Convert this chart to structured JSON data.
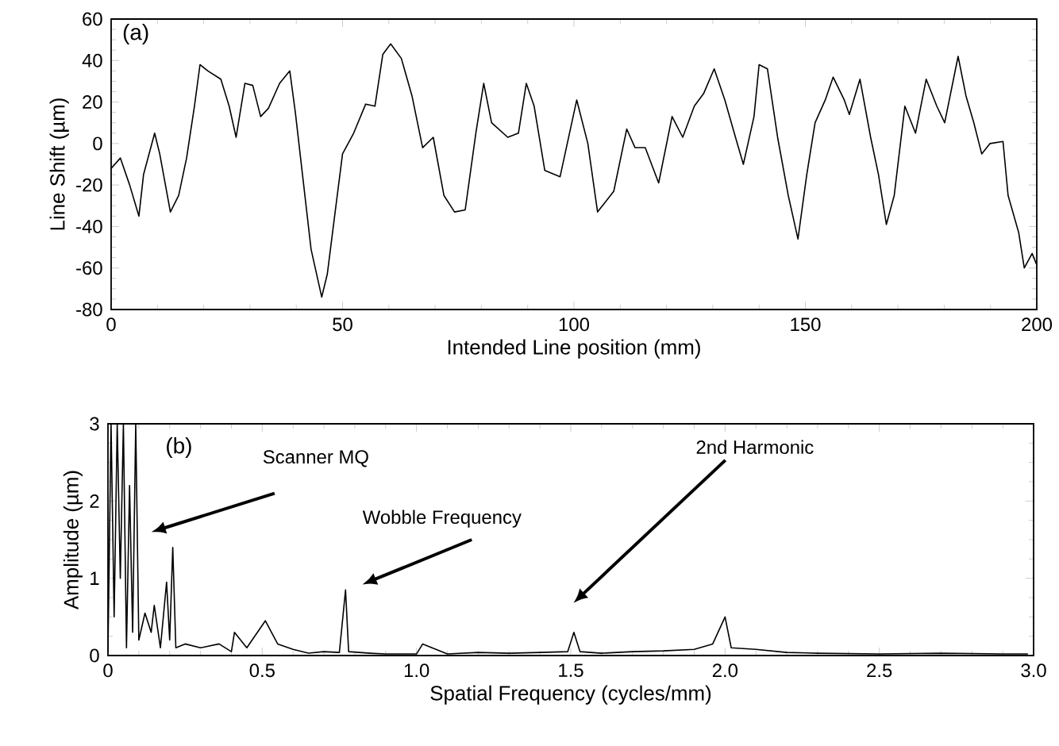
{
  "chart_data": [
    {
      "type": "line",
      "xlabel": "Intended Line position (mm)",
      "ylabel": "Line Shift (µm)",
      "annotations": [
        "(a)"
      ],
      "xlim": [
        0,
        200
      ],
      "ylim": [
        -80,
        60
      ],
      "xticks": [
        0,
        50,
        100,
        150,
        200
      ],
      "yticks": [
        -80,
        -60,
        -40,
        -20,
        0,
        20,
        40,
        60
      ],
      "grid": false,
      "x": [
        0,
        2,
        4,
        6,
        7,
        9.4,
        10.5,
        12.8,
        14.6,
        16.3,
        18,
        19.2,
        20.9,
        23.7,
        25.5,
        27,
        28.9,
        30.6,
        32.3,
        34,
        36.4,
        38.6,
        39.8,
        41.5,
        43.2,
        45.5,
        46.7,
        48.4,
        50,
        52.4,
        55,
        57,
        58.7,
        60.4,
        62.7,
        65,
        67.3,
        69.6,
        71.9,
        74.2,
        76.5,
        78.8,
        80.5,
        82.2,
        85.7,
        88,
        89.7,
        91.4,
        93.7,
        97,
        100.6,
        103,
        105.1,
        108.6,
        111.4,
        113.2,
        115.4,
        118.3,
        121.2,
        123.5,
        126,
        128,
        130.3,
        132.6,
        134.9,
        136.6,
        138.9,
        140,
        141.8,
        144,
        146.3,
        148.4,
        150.3,
        152.1,
        154.3,
        156,
        158.4,
        159.5,
        161.8,
        164.1,
        165.8,
        167.5,
        169.2,
        171.5,
        173.8,
        176.1,
        178.4,
        180.1,
        183,
        184.7,
        186.4,
        188.1,
        189.9,
        192.7,
        193.8,
        196.1,
        197.3,
        199,
        199.9
      ],
      "series": [
        {
          "color": "#000000",
          "values": [
            -12,
            -7,
            -20,
            -35,
            -15,
            5,
            -5,
            -33,
            -25,
            -7,
            18,
            38,
            35,
            31,
            18,
            3,
            29,
            28,
            13,
            17,
            29,
            35,
            15,
            -18,
            -51,
            -74,
            -63,
            -33,
            -5,
            5,
            19,
            18,
            43,
            48,
            41,
            23,
            -2,
            3,
            -25,
            -33,
            -32,
            5,
            29,
            10,
            3,
            5,
            29,
            18,
            -13,
            -16,
            21,
            0,
            -33,
            -23,
            7,
            -2,
            -2,
            -19,
            13,
            3,
            18,
            24,
            36,
            21,
            3,
            -10,
            13,
            38,
            36,
            3,
            -25,
            -46,
            -15,
            10,
            21,
            32,
            21,
            14,
            31,
            3,
            -15,
            -39,
            -25,
            18,
            5,
            31,
            18,
            10,
            42,
            23,
            10,
            -5,
            0,
            1,
            -25,
            -43,
            -60,
            -53,
            -58
          ]
        }
      ]
    },
    {
      "type": "line",
      "xlabel": "Spatial Frequency (cycles/mm)",
      "ylabel": "Amplitude (µm)",
      "annotations": [
        "(b)",
        "Scanner MQ",
        "Wobble Frequency",
        "2nd Harmonic"
      ],
      "xlim": [
        0,
        3
      ],
      "ylim": [
        0,
        3
      ],
      "xticks": [
        0,
        0.5,
        {
          "value": 1,
          "label": "1.0"
        },
        1.5,
        {
          "value": 2,
          "label": "2.0"
        },
        2.5,
        {
          "value": 3,
          "label": "3.0"
        }
      ],
      "yticks": [
        0,
        1,
        2,
        3
      ],
      "grid": false,
      "x": [
        0,
        0.01,
        0.02,
        0.03,
        0.04,
        0.05,
        0.06,
        0.07,
        0.08,
        0.09,
        0.1,
        0.12,
        0.14,
        0.15,
        0.17,
        0.19,
        0.2,
        0.21,
        0.22,
        0.25,
        0.3,
        0.36,
        0.4,
        0.41,
        0.45,
        0.51,
        0.55,
        0.6,
        0.65,
        0.7,
        0.75,
        0.77,
        0.78,
        0.85,
        0.9,
        1.0,
        1.02,
        1.1,
        1.2,
        1.3,
        1.4,
        1.49,
        1.51,
        1.53,
        1.6,
        1.7,
        1.8,
        1.9,
        1.96,
        2.0,
        2.02,
        2.1,
        2.2,
        2.3,
        2.5,
        2.7,
        2.9,
        2.98
      ],
      "series": [
        {
          "color": "#000000",
          "values": [
            0.05,
            3,
            0.5,
            3,
            1.0,
            3,
            0.1,
            2.2,
            0.3,
            3,
            0.2,
            0.55,
            0.3,
            0.65,
            0.1,
            0.95,
            0.2,
            1.4,
            0.1,
            0.15,
            0.1,
            0.15,
            0.05,
            0.3,
            0.1,
            0.45,
            0.15,
            0.08,
            0.03,
            0.05,
            0.04,
            0.85,
            0.05,
            0.03,
            0.02,
            0.02,
            0.15,
            0.02,
            0.04,
            0.03,
            0.04,
            0.05,
            0.3,
            0.05,
            0.03,
            0.05,
            0.06,
            0.08,
            0.15,
            0.5,
            0.1,
            0.08,
            0.04,
            0.03,
            0.02,
            0.03,
            0.02,
            0.02
          ]
        }
      ]
    }
  ]
}
